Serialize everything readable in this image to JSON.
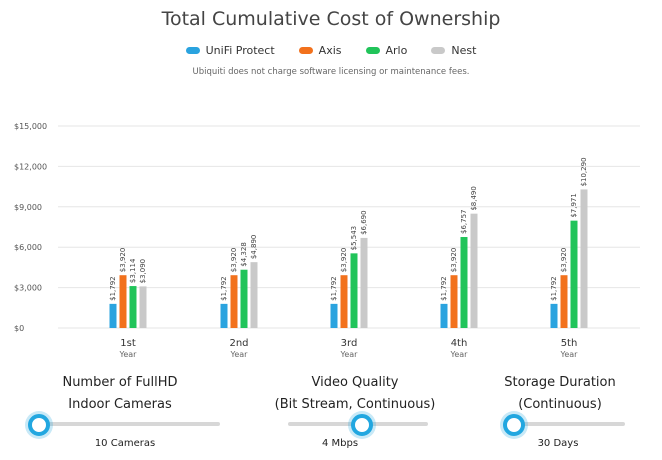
{
  "title": "Total Cumulative Cost of Ownership",
  "legend": [
    {
      "label": "UniFi Protect",
      "color": "#2aa3df"
    },
    {
      "label": "Axis",
      "color": "#f2711c"
    },
    {
      "label": "Arlo",
      "color": "#21c45a"
    },
    {
      "label": "Nest",
      "color": "#c9c9c9"
    }
  ],
  "note": "Ubiquiti does not charge software licensing or maintenance fees.",
  "chart_data": {
    "type": "bar",
    "title": "Total Cumulative Cost of Ownership",
    "ylim": [
      0,
      15000
    ],
    "yticks": [
      0,
      3000,
      6000,
      9000,
      12000,
      15000
    ],
    "ytick_labels": [
      "$0",
      "$3,000",
      "$6,000",
      "$9,000",
      "$12,000",
      "$15,000"
    ],
    "grid": true,
    "legend_position": "top-center",
    "categories": [
      "1st",
      "2nd",
      "3rd",
      "4th",
      "5th"
    ],
    "category_sublabel": "Year",
    "series": [
      {
        "name": "UniFi Protect",
        "color": "#2aa3df",
        "values": [
          1792,
          1792,
          1792,
          1792,
          1792
        ],
        "labels": [
          "$1,792",
          "$1,792",
          "$1,792",
          "$1,792",
          "$1,792"
        ]
      },
      {
        "name": "Axis",
        "color": "#f2711c",
        "values": [
          3920,
          3920,
          3920,
          3920,
          3920
        ],
        "labels": [
          "$3,920",
          "$3,920",
          "$3,920",
          "$3,920",
          "$3,920"
        ]
      },
      {
        "name": "Arlo",
        "color": "#21c45a",
        "values": [
          3114,
          4328,
          5543,
          6757,
          7971
        ],
        "labels": [
          "$3,114",
          "$4,328",
          "$5,543",
          "$6,757",
          "$7,971"
        ]
      },
      {
        "name": "Nest",
        "color": "#c9c9c9",
        "values": [
          3090,
          4890,
          6690,
          8490,
          10290
        ],
        "labels": [
          "$3,090",
          "$4,890",
          "$6,690",
          "$8,490",
          "$10,290"
        ]
      }
    ]
  },
  "controls": {
    "cameras": {
      "line1": "Number of FullHD",
      "line2": "Indoor Cameras",
      "value": "10 Cameras",
      "fraction": 0.0
    },
    "quality": {
      "line1": "Video Quality",
      "line2": "(Bit Stream, Continuous)",
      "value": "4 Mbps",
      "fraction": 0.5
    },
    "storage": {
      "line1": "Storage Duration",
      "line2": "(Continuous)",
      "value": "30 Days",
      "fraction": 0.0
    }
  }
}
